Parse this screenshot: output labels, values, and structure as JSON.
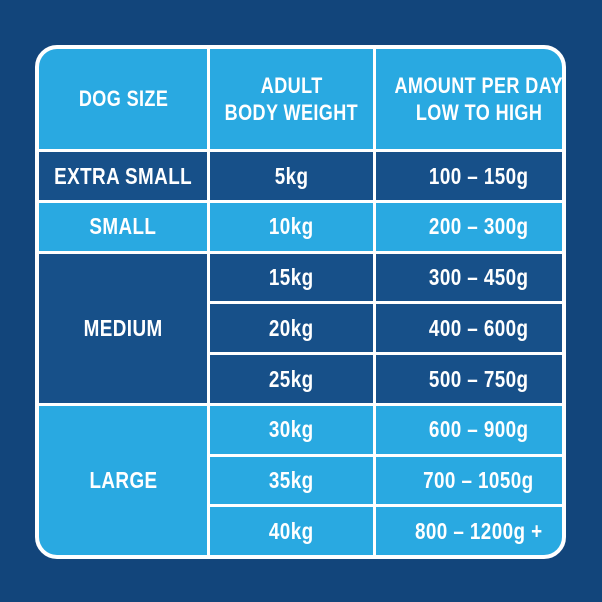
{
  "feeding_table": {
    "header": {
      "dog_size": {
        "line1": "DOG SIZE"
      },
      "adult_body_weight": {
        "line1": "ADULT",
        "line2": "BODY WEIGHT"
      },
      "amount_per_day": {
        "line1": "AMOUNT PER DAY",
        "line2": "LOW TO HIGH"
      }
    },
    "groups": [
      {
        "size": "EXTRA SMALL",
        "rows": [
          {
            "weight": "5kg",
            "amount": "100 – 150g"
          }
        ]
      },
      {
        "size": "SMALL",
        "rows": [
          {
            "weight": "10kg",
            "amount": "200 – 300g"
          }
        ]
      },
      {
        "size": "MEDIUM",
        "rows": [
          {
            "weight": "15kg",
            "amount": "300 – 450g"
          },
          {
            "weight": "20kg",
            "amount": "400 – 600g"
          },
          {
            "weight": "25kg",
            "amount": "500 – 750g"
          }
        ]
      },
      {
        "size": "LARGE",
        "rows": [
          {
            "weight": "30kg",
            "amount": "600 – 900g"
          },
          {
            "weight": "35kg",
            "amount": "700 – 1050g"
          },
          {
            "weight": "40kg",
            "amount": "800 – 1200g +"
          }
        ]
      }
    ],
    "colors": {
      "background": "#12457B",
      "cell_cyan": "#29A9E1",
      "cell_navy": "#175089",
      "border": "#FFFFFF",
      "text": "#FFFFFF"
    }
  },
  "chart_data": {
    "type": "table",
    "title": "",
    "columns": [
      "DOG SIZE",
      "ADULT BODY WEIGHT",
      "AMOUNT PER DAY LOW TO HIGH"
    ],
    "rows": [
      [
        "EXTRA SMALL",
        "5kg",
        "100 – 150g"
      ],
      [
        "SMALL",
        "10kg",
        "200 – 300g"
      ],
      [
        "MEDIUM",
        "15kg",
        "300 – 450g"
      ],
      [
        "MEDIUM",
        "20kg",
        "400 – 600g"
      ],
      [
        "MEDIUM",
        "25kg",
        "500 – 750g"
      ],
      [
        "LARGE",
        "30kg",
        "600 – 900g"
      ],
      [
        "LARGE",
        "35kg",
        "700 – 1050g"
      ],
      [
        "LARGE",
        "40kg",
        "800 – 1200g +"
      ]
    ],
    "layout": {
      "header_background": "#29A9E1",
      "row_group_backgrounds": [
        "#175089",
        "#29A9E1",
        "#175089",
        "#29A9E1"
      ],
      "grid": "on",
      "grid_color": "#FFFFFF"
    }
  }
}
